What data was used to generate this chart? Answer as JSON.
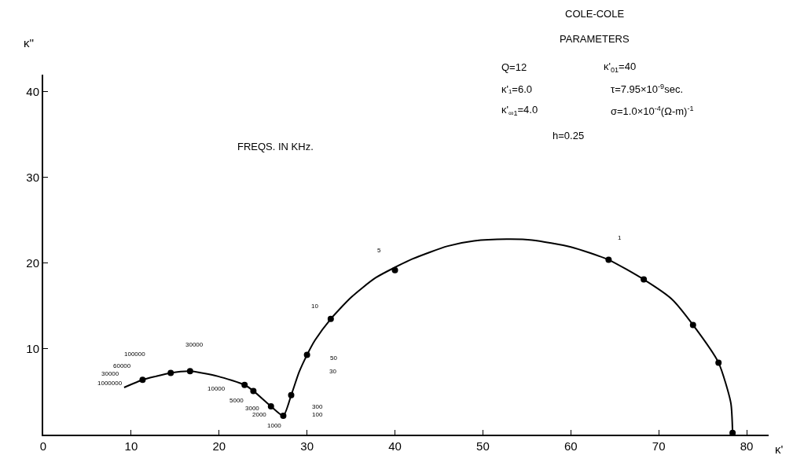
{
  "chart_data": {
    "type": "line",
    "xlabel": "κ'",
    "ylabel": "κ''",
    "xlim": [
      0,
      82.5
    ],
    "ylim": [
      0,
      42
    ],
    "xticks": [
      0,
      10,
      20,
      30,
      40,
      50,
      60,
      70,
      80
    ],
    "yticks": [
      10,
      20,
      30,
      40
    ],
    "series": [
      {
        "color": "#000000",
        "marker": "none",
        "x": [
          9.2,
          11.3,
          12.8,
          14.5,
          16.7,
          19.9,
          22.9,
          23.9,
          25.9,
          27.3,
          28.2,
          29.1,
          30.0,
          30.9,
          32.7,
          35.0,
          37.8,
          42.0,
          46.0,
          49.0,
          52.7,
          55.6,
          60.0,
          64.3,
          68.3,
          71.5,
          73.9,
          76.8,
          78.2,
          78.4
        ],
        "values": [
          5.5,
          6.4,
          6.8,
          7.2,
          7.4,
          6.8,
          5.8,
          5.1,
          3.3,
          2.2,
          4.6,
          7.3,
          9.3,
          11.0,
          13.5,
          16.0,
          18.3,
          20.5,
          22.0,
          22.6,
          22.8,
          22.7,
          21.9,
          20.4,
          18.1,
          15.8,
          12.8,
          8.4,
          3.7,
          0.2
        ]
      },
      {
        "type": "scatter",
        "color": "#000000",
        "marker": "circle",
        "x": [
          11.3,
          14.5,
          16.7,
          22.9,
          23.9,
          25.9,
          27.3,
          28.2,
          30.0,
          32.7,
          40.0,
          64.3,
          68.3,
          73.9,
          76.8,
          78.4
        ],
        "values": [
          6.4,
          7.2,
          7.4,
          5.8,
          5.1,
          3.3,
          2.2,
          4.6,
          9.3,
          13.5,
          19.2,
          20.4,
          18.1,
          12.8,
          8.4,
          0.2
        ]
      }
    ],
    "annotations": [
      "100000",
      "60000",
      "30000",
      "1000000",
      "30000",
      "10000",
      "5000",
      "3000",
      "2000",
      "1000",
      "300",
      "100",
      "50",
      "30",
      "10",
      "5",
      "1",
      "FREQS. IN KHz.",
      "COLE-COLE",
      "PARAMETERS",
      "Q=12",
      "κ'$_{01}$=40",
      "κ'₁=6.0",
      "τ=7.95×10$^{-9}$sec.",
      "κ'$_{∞1}$=4.0",
      "σ=1.0×10$^{-4}$(Ω-m)$^{-1}$",
      "h=0.25"
    ]
  }
}
